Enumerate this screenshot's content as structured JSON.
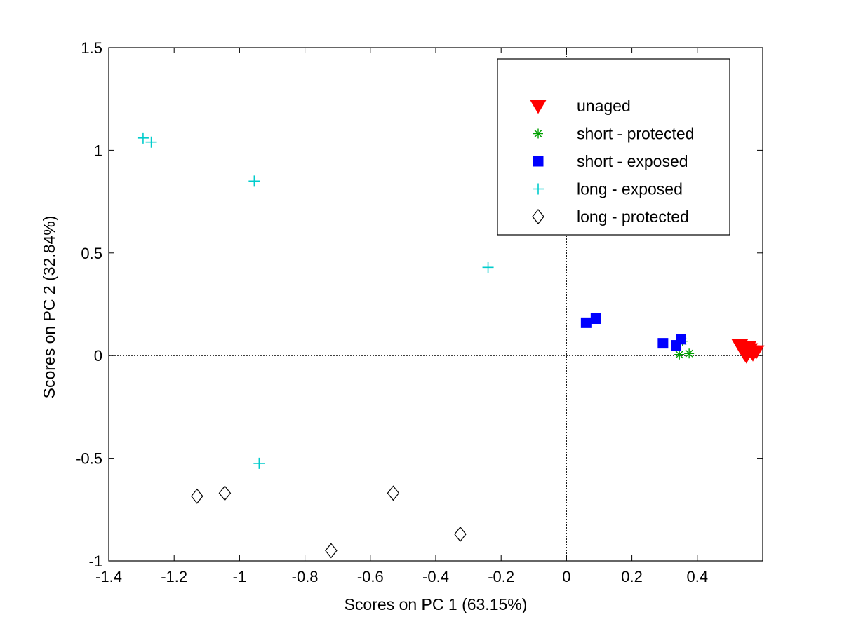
{
  "chart_data": {
    "type": "scatter",
    "title": "",
    "xlabel": "Scores on PC 1 (63.15%)",
    "ylabel": "Scores on PC 2 (32.84%)",
    "xlim": [
      -1.4,
      0.6
    ],
    "ylim": [
      -1,
      1.5
    ],
    "xticks": [
      -1.4,
      -1.2,
      -1,
      -0.8,
      -0.6,
      -0.4,
      -0.2,
      0,
      0.2,
      0.4
    ],
    "xtick_labels": [
      "-1.4",
      "-1.2",
      "-1",
      "-0.8",
      "-0.6",
      "-0.4",
      "-0.2",
      "0",
      "0.2",
      "0.4"
    ],
    "yticks": [
      -1,
      -0.5,
      0,
      0.5,
      1,
      1.5
    ],
    "ytick_labels": [
      "-1",
      "-0.5",
      "0",
      "0.5",
      "1",
      "1.5"
    ],
    "grid": false,
    "reference_lines": {
      "x": 0,
      "y": 0,
      "style": "dotted"
    },
    "legend_position": "top-right",
    "series": [
      {
        "name": "unaged",
        "marker": "triangle-down",
        "color": "#ff0000",
        "points": [
          {
            "x": 0.53,
            "y": 0.05
          },
          {
            "x": 0.545,
            "y": 0.01
          },
          {
            "x": 0.55,
            "y": 0.0
          },
          {
            "x": 0.56,
            "y": 0.03
          },
          {
            "x": 0.565,
            "y": 0.02
          },
          {
            "x": 0.57,
            "y": 0.01
          },
          {
            "x": 0.58,
            "y": 0.02
          },
          {
            "x": 0.555,
            "y": 0.04
          }
        ]
      },
      {
        "name": "short - protected",
        "marker": "asterisk",
        "color": "#00a000",
        "points": [
          {
            "x": 0.345,
            "y": 0.005
          },
          {
            "x": 0.375,
            "y": 0.01
          },
          {
            "x": 0.355,
            "y": 0.07
          }
        ]
      },
      {
        "name": "short - exposed",
        "marker": "square",
        "color": "#0000ff",
        "points": [
          {
            "x": 0.06,
            "y": 0.16
          },
          {
            "x": 0.09,
            "y": 0.18
          },
          {
            "x": 0.295,
            "y": 0.06
          },
          {
            "x": 0.335,
            "y": 0.05
          },
          {
            "x": 0.35,
            "y": 0.08
          }
        ]
      },
      {
        "name": "long - exposed",
        "marker": "plus",
        "color": "#00cccc",
        "points": [
          {
            "x": -1.295,
            "y": 1.06
          },
          {
            "x": -1.27,
            "y": 1.04
          },
          {
            "x": -0.955,
            "y": 0.85
          },
          {
            "x": -0.24,
            "y": 0.43
          },
          {
            "x": -0.94,
            "y": -0.525
          }
        ]
      },
      {
        "name": "long - protected",
        "marker": "diamond",
        "color": "#000000",
        "points": [
          {
            "x": -1.13,
            "y": -0.685
          },
          {
            "x": -1.045,
            "y": -0.67
          },
          {
            "x": -0.72,
            "y": -0.95
          },
          {
            "x": -0.53,
            "y": -0.67
          },
          {
            "x": -0.325,
            "y": -0.87
          }
        ]
      }
    ]
  }
}
